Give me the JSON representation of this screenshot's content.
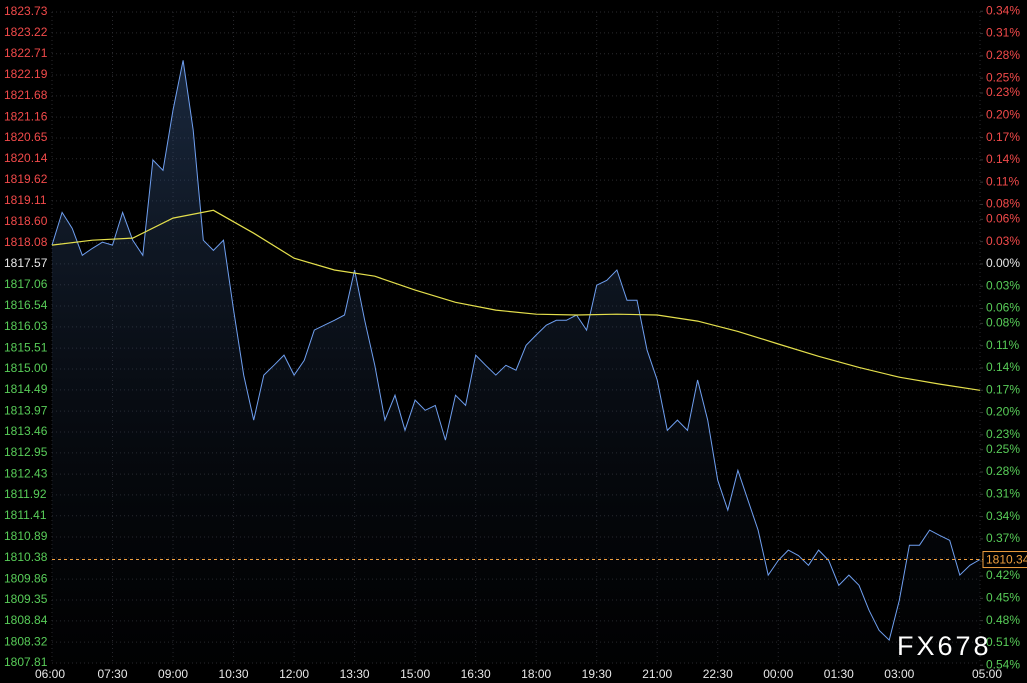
{
  "chart_data": {
    "type": "line",
    "watermark": "FX678",
    "xlim": [
      0,
      1380
    ],
    "xticks": [
      {
        "value": 0,
        "label": "06:00"
      },
      {
        "value": 90,
        "label": "07:30"
      },
      {
        "value": 180,
        "label": "09:00"
      },
      {
        "value": 270,
        "label": "10:30"
      },
      {
        "value": 360,
        "label": "12:00"
      },
      {
        "value": 450,
        "label": "13:30"
      },
      {
        "value": 540,
        "label": "15:00"
      },
      {
        "value": 630,
        "label": "16:30"
      },
      {
        "value": 720,
        "label": "18:00"
      },
      {
        "value": 810,
        "label": "19:30"
      },
      {
        "value": 900,
        "label": "21:00"
      },
      {
        "value": 990,
        "label": "22:30"
      },
      {
        "value": 1080,
        "label": "00:00"
      },
      {
        "value": 1170,
        "label": "01:30"
      },
      {
        "value": 1260,
        "label": "03:00"
      },
      {
        "value": 1380,
        "label": "05:00"
      }
    ],
    "ylim": [
      1807.81,
      1823.73
    ],
    "yticks": [
      1823.73,
      1823.22,
      1822.71,
      1822.19,
      1821.68,
      1821.16,
      1820.65,
      1820.14,
      1819.62,
      1819.11,
      {
        "value": 1818.6,
        "label": "1818.60"
      },
      1818.08,
      1817.57,
      1817.06,
      1816.54,
      1816.03,
      1815.51,
      {
        "value": 1815,
        "label": "1815.00"
      },
      1814.49,
      1813.97,
      1813.46,
      1812.95,
      1812.43,
      1811.92,
      1811.41,
      1810.89,
      1810.38,
      1809.86,
      1809.35,
      1808.84,
      1808.32,
      1807.81
    ],
    "y2lim": [
      -0.537,
      0.339
    ],
    "y2ticks": [
      {
        "value": 0.34,
        "label": "0.34%"
      },
      {
        "value": 0.31,
        "label": "0.31%"
      },
      {
        "value": 0.28,
        "label": "0.28%"
      },
      {
        "value": 0.25,
        "label": "0.25%"
      },
      {
        "value": 0.23,
        "label": "0.23%"
      },
      {
        "value": 0.2,
        "label": "0.20%"
      },
      {
        "value": 0.17,
        "label": "0.17%"
      },
      {
        "value": 0.14,
        "label": "0.14%"
      },
      {
        "value": 0.11,
        "label": "0.11%"
      },
      {
        "value": 0.08,
        "label": "0.08%"
      },
      {
        "value": 0.06,
        "label": "0.06%"
      },
      {
        "value": 0.03,
        "label": "0.03%"
      },
      {
        "value": 0,
        "label": "0.00%"
      },
      {
        "value": -0.03,
        "label": "0.03%"
      },
      {
        "value": -0.06,
        "label": "0.06%"
      },
      {
        "value": -0.08,
        "label": "0.08%"
      },
      {
        "value": -0.11,
        "label": "0.11%"
      },
      {
        "value": -0.14,
        "label": "0.14%"
      },
      {
        "value": -0.17,
        "label": "0.17%"
      },
      {
        "value": -0.2,
        "label": "0.20%"
      },
      {
        "value": -0.23,
        "label": "0.23%"
      },
      {
        "value": -0.25,
        "label": "0.25%"
      },
      {
        "value": -0.28,
        "label": "0.28%"
      },
      {
        "value": -0.31,
        "label": "0.31%"
      },
      {
        "value": -0.34,
        "label": "0.34%"
      },
      {
        "value": -0.37,
        "label": "0.37%"
      },
      {
        "value": -0.4,
        "label": "0.40%"
      },
      {
        "value": -0.42,
        "label": "0.42%"
      },
      {
        "value": -0.45,
        "label": "0.45%"
      },
      {
        "value": -0.48,
        "label": "0.48%"
      },
      {
        "value": -0.51,
        "label": "0.51%"
      },
      {
        "value": -0.54,
        "label": "0.54%"
      }
    ],
    "up_color": "#f24a4a",
    "down_color": "#58cc58",
    "flat_color": "#e8e8e8",
    "grid": true,
    "last_price": 1810.34,
    "last_price_color": "#f0a040",
    "series": [
      {
        "color": "#6f9ff0",
        "x": [
          0,
          15,
          30,
          45,
          60,
          75,
          90,
          105,
          120,
          135,
          150,
          165,
          180,
          195,
          210,
          225,
          240,
          255,
          270,
          285,
          300,
          315,
          330,
          345,
          360,
          375,
          390,
          405,
          420,
          435,
          450,
          465,
          480,
          495,
          510,
          525,
          540,
          555,
          570,
          585,
          600,
          615,
          630,
          645,
          660,
          675,
          690,
          705,
          720,
          735,
          750,
          765,
          780,
          795,
          810,
          825,
          840,
          855,
          870,
          885,
          900,
          915,
          930,
          945,
          960,
          975,
          990,
          1005,
          1020,
          1035,
          1050,
          1065,
          1080,
          1095,
          1110,
          1125,
          1140,
          1155,
          1170,
          1185,
          1200,
          1215,
          1230,
          1245,
          1260,
          1275,
          1290,
          1305,
          1320,
          1335,
          1350,
          1365,
          1380
        ],
        "values": [
          1818.03,
          1818.83,
          1818.44,
          1817.78,
          1817.95,
          1818.1,
          1818.03,
          1818.83,
          1818.15,
          1817.78,
          1820.11,
          1819.86,
          1821.33,
          1822.55,
          1820.84,
          1818.15,
          1817.9,
          1818.15,
          1816.44,
          1814.85,
          1813.75,
          1814.85,
          1815.09,
          1815.34,
          1814.85,
          1815.21,
          1815.95,
          1816.07,
          1816.19,
          1816.32,
          1817.42,
          1816.19,
          1815.09,
          1813.75,
          1814.36,
          1813.5,
          1814.24,
          1813.99,
          1814.11,
          1813.26,
          1814.36,
          1814.11,
          1815.34,
          1815.09,
          1814.85,
          1815.09,
          1814.97,
          1815.58,
          1815.83,
          1816.07,
          1816.19,
          1816.19,
          1816.32,
          1815.95,
          1817.05,
          1817.17,
          1817.42,
          1816.68,
          1816.68,
          1815.46,
          1814.73,
          1813.5,
          1813.75,
          1813.5,
          1814.73,
          1813.75,
          1812.28,
          1811.55,
          1812.52,
          1811.79,
          1811.06,
          1809.96,
          1810.32,
          1810.57,
          1810.44,
          1810.2,
          1810.57,
          1810.32,
          1809.71,
          1809.96,
          1809.71,
          1809.1,
          1808.61,
          1808.37,
          1809.34,
          1810.69,
          1810.69,
          1811.06,
          1810.93,
          1810.81,
          1809.96,
          1810.2,
          1810.34
        ]
      },
      {
        "color": "#e4df4c",
        "x": [
          0,
          60,
          120,
          180,
          240,
          300,
          360,
          420,
          480,
          540,
          600,
          660,
          720,
          780,
          840,
          900,
          960,
          1020,
          1080,
          1140,
          1200,
          1260,
          1320,
          1380
        ],
        "values": [
          1818.03,
          1818.15,
          1818.2,
          1818.69,
          1818.88,
          1818.32,
          1817.71,
          1817.42,
          1817.27,
          1816.93,
          1816.63,
          1816.44,
          1816.34,
          1816.32,
          1816.34,
          1816.32,
          1816.17,
          1815.92,
          1815.61,
          1815.31,
          1815.04,
          1814.8,
          1814.63,
          1814.48
        ]
      }
    ]
  }
}
